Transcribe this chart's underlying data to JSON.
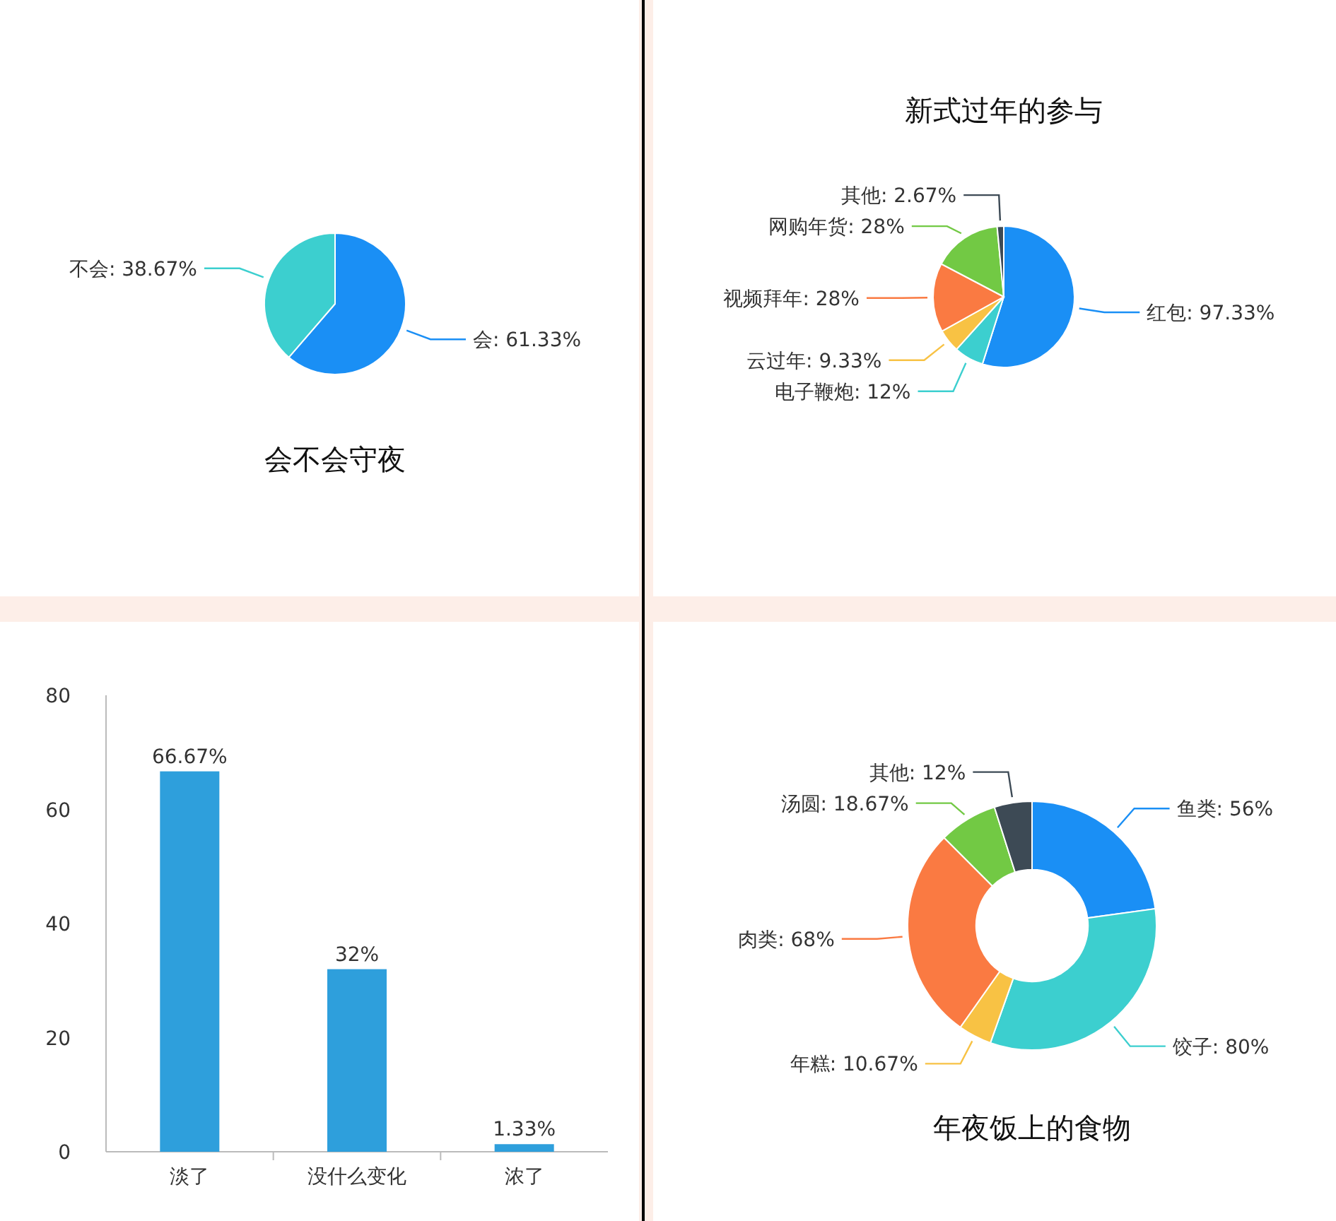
{
  "chart_data": [
    {
      "type": "pie",
      "title": "会不会守夜",
      "categories": [
        "会",
        "不会"
      ],
      "values": [
        61.33,
        38.67
      ],
      "value_labels": [
        "61.33%",
        "38.67%"
      ],
      "colors": [
        "#1a8ff5",
        "#3ccfcf"
      ]
    },
    {
      "type": "pie",
      "title": "新式过年的参与",
      "categories": [
        "红包",
        "电子鞭炮",
        "云过年",
        "视频拜年",
        "网购年货",
        "其他"
      ],
      "values": [
        97.33,
        12,
        9.33,
        28,
        28,
        2.67
      ],
      "value_labels": [
        "97.33%",
        "12%",
        "9.33%",
        "28%",
        "28%",
        "2.67%"
      ],
      "colors": [
        "#1a8ff5",
        "#3ccfcf",
        "#f8c244",
        "#fa7a42",
        "#72c944",
        "#3d4a55"
      ]
    },
    {
      "type": "bar",
      "categories": [
        "淡了",
        "没什么变化",
        "浓了"
      ],
      "values": [
        66.67,
        32,
        1.33
      ],
      "value_labels": [
        "66.67%",
        "32%",
        "1.33%"
      ],
      "color": "#2e9fdc",
      "ylim": [
        0,
        80
      ],
      "yticks": [
        0,
        20,
        40,
        60,
        80
      ]
    },
    {
      "type": "donut",
      "title": "年夜饭上的食物",
      "categories": [
        "鱼类",
        "饺子",
        "年糕",
        "肉类",
        "汤圆",
        "其他"
      ],
      "values": [
        56,
        80,
        10.67,
        68,
        18.67,
        12
      ],
      "value_labels": [
        "56%",
        "80%",
        "10.67%",
        "68%",
        "18.67%",
        "12%"
      ],
      "colors": [
        "#1a8ff5",
        "#3ccfcf",
        "#f8c244",
        "#fa7a42",
        "#72c944",
        "#3d4a55"
      ]
    }
  ]
}
